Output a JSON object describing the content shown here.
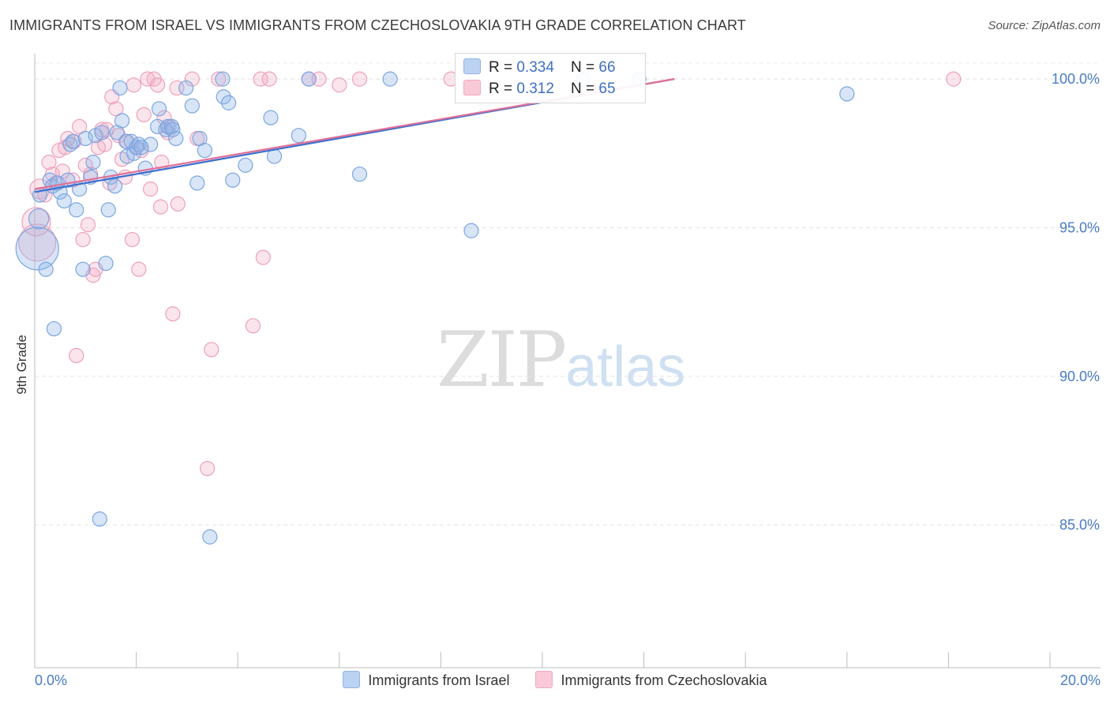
{
  "title": "IMMIGRANTS FROM ISRAEL VS IMMIGRANTS FROM CZECHOSLOVAKIA 9TH GRADE CORRELATION CHART",
  "source": "Source: ZipAtlas.com",
  "watermark": {
    "zip": "ZIP",
    "atlas": "atlas"
  },
  "colors": {
    "blue": "#8fb4e8",
    "blue_line": "#3a6fcc",
    "pink": "#f2a8c0",
    "pink_line": "#e07099",
    "tick_text": "#4a7cc7"
  },
  "legend_top": {
    "rows": [
      {
        "r_label": "R = ",
        "r_value": "0.334",
        "n_label": "N = ",
        "n_value": "66"
      },
      {
        "r_label": "R = ",
        "r_value": "0.312",
        "n_label": "N = ",
        "n_value": "65"
      }
    ]
  },
  "legend_bottom": [
    "Immigrants from Israel",
    "Immigrants from Czechoslovakia"
  ],
  "chart_data": {
    "type": "scatter",
    "title": "IMMIGRANTS FROM ISRAEL VS IMMIGRANTS FROM CZECHOSLOVAKIA 9TH GRADE CORRELATION CHART",
    "xlabel": "",
    "ylabel": "9th Grade",
    "xlim": [
      0,
      20
    ],
    "ylim": [
      80.2,
      100.8
    ],
    "x_tick_labels": [
      "0.0%",
      "20.0%"
    ],
    "y_ticks": [
      85,
      90,
      95,
      100
    ],
    "y_tick_labels": [
      "85.0%",
      "90.0%",
      "95.0%",
      "100.0%"
    ],
    "grid": true,
    "series": [
      {
        "name": "Immigrants from Israel",
        "R": 0.334,
        "N": 66,
        "trend": {
          "x": [
            0,
            12.6
          ],
          "y": [
            96.2,
            100.0
          ]
        },
        "points": [
          [
            0.05,
            94.3,
            3
          ],
          [
            0.08,
            95.3,
            1.4
          ],
          [
            0.1,
            96.1,
            1
          ],
          [
            0.22,
            93.6,
            1
          ],
          [
            0.3,
            96.6,
            1
          ],
          [
            0.35,
            96.4,
            1
          ],
          [
            0.38,
            91.6,
            1
          ],
          [
            0.45,
            96.5,
            1
          ],
          [
            0.5,
            96.2,
            1
          ],
          [
            0.58,
            95.9,
            1
          ],
          [
            0.65,
            96.6,
            1
          ],
          [
            0.7,
            97.8,
            1
          ],
          [
            0.75,
            97.9,
            1
          ],
          [
            0.82,
            95.6,
            1
          ],
          [
            0.88,
            96.3,
            1
          ],
          [
            0.95,
            93.6,
            1
          ],
          [
            1.0,
            98.0,
            1
          ],
          [
            1.1,
            96.7,
            1
          ],
          [
            1.15,
            97.2,
            1
          ],
          [
            1.2,
            98.1,
            1
          ],
          [
            1.28,
            85.2,
            1
          ],
          [
            1.32,
            98.2,
            1
          ],
          [
            1.4,
            93.8,
            1
          ],
          [
            1.45,
            95.6,
            1
          ],
          [
            1.5,
            96.7,
            1
          ],
          [
            1.58,
            96.4,
            1
          ],
          [
            1.62,
            98.2,
            1
          ],
          [
            1.68,
            99.7,
            1
          ],
          [
            1.72,
            98.6,
            1
          ],
          [
            1.8,
            97.9,
            1
          ],
          [
            1.82,
            97.4,
            1
          ],
          [
            1.9,
            97.9,
            1
          ],
          [
            1.95,
            97.5,
            1
          ],
          [
            2.0,
            97.7,
            1
          ],
          [
            2.05,
            97.8,
            1
          ],
          [
            2.1,
            97.7,
            1
          ],
          [
            2.18,
            97.0,
            1
          ],
          [
            2.28,
            97.8,
            1
          ],
          [
            2.42,
            98.4,
            1
          ],
          [
            2.45,
            99.0,
            1
          ],
          [
            2.58,
            98.3,
            1
          ],
          [
            2.62,
            98.4,
            1
          ],
          [
            2.7,
            98.4,
            1
          ],
          [
            2.72,
            98.3,
            1
          ],
          [
            2.78,
            98.0,
            1
          ],
          [
            2.98,
            99.7,
            1
          ],
          [
            3.1,
            99.1,
            1
          ],
          [
            3.2,
            96.5,
            1
          ],
          [
            3.25,
            98.0,
            1
          ],
          [
            3.35,
            97.6,
            1
          ],
          [
            3.45,
            84.6,
            1
          ],
          [
            3.7,
            100.0,
            1
          ],
          [
            3.72,
            99.4,
            1
          ],
          [
            3.82,
            99.2,
            1
          ],
          [
            3.9,
            96.6,
            1
          ],
          [
            4.15,
            97.1,
            1
          ],
          [
            4.65,
            98.7,
            1
          ],
          [
            4.72,
            97.4,
            1
          ],
          [
            5.2,
            98.1,
            1
          ],
          [
            5.4,
            100.0,
            1
          ],
          [
            6.4,
            96.8,
            1
          ],
          [
            7.0,
            100.0,
            1
          ],
          [
            8.6,
            94.9,
            1
          ],
          [
            10.8,
            100.0,
            1
          ],
          [
            11.9,
            100.0,
            1
          ],
          [
            16.0,
            99.5,
            1
          ]
        ]
      },
      {
        "name": "Immigrants from Czechoslovakia",
        "R": 0.312,
        "N": 65,
        "trend": {
          "x": [
            0,
            12.6
          ],
          "y": [
            96.3,
            100.0
          ]
        },
        "points": [
          [
            0.03,
            95.2,
            2
          ],
          [
            0.05,
            94.5,
            2.6
          ],
          [
            0.1,
            96.3,
            1.4
          ],
          [
            0.2,
            96.1,
            1
          ],
          [
            0.28,
            97.2,
            1
          ],
          [
            0.35,
            96.8,
            1
          ],
          [
            0.42,
            96.5,
            1
          ],
          [
            0.48,
            97.6,
            1
          ],
          [
            0.55,
            96.9,
            1
          ],
          [
            0.6,
            97.7,
            1
          ],
          [
            0.65,
            98.0,
            1
          ],
          [
            0.75,
            96.6,
            1
          ],
          [
            0.78,
            97.9,
            1
          ],
          [
            0.82,
            90.7,
            1
          ],
          [
            0.88,
            98.4,
            1
          ],
          [
            0.95,
            94.6,
            1
          ],
          [
            1.0,
            97.1,
            1
          ],
          [
            1.05,
            95.1,
            1
          ],
          [
            1.1,
            96.8,
            1
          ],
          [
            1.15,
            93.4,
            1
          ],
          [
            1.2,
            93.6,
            1
          ],
          [
            1.25,
            97.7,
            1
          ],
          [
            1.32,
            98.3,
            1
          ],
          [
            1.38,
            97.8,
            1
          ],
          [
            1.42,
            98.3,
            1
          ],
          [
            1.48,
            96.5,
            1
          ],
          [
            1.52,
            99.4,
            1
          ],
          [
            1.6,
            99.0,
            1
          ],
          [
            1.65,
            98.1,
            1
          ],
          [
            1.72,
            97.3,
            1
          ],
          [
            1.78,
            96.7,
            1
          ],
          [
            1.82,
            97.9,
            1
          ],
          [
            1.92,
            94.6,
            1
          ],
          [
            1.95,
            99.8,
            1
          ],
          [
            2.0,
            97.7,
            1
          ],
          [
            2.05,
            93.6,
            1
          ],
          [
            2.1,
            97.6,
            1
          ],
          [
            2.15,
            98.8,
            1
          ],
          [
            2.22,
            100.0,
            1
          ],
          [
            2.28,
            96.3,
            1
          ],
          [
            2.35,
            100.0,
            1
          ],
          [
            2.42,
            99.8,
            1
          ],
          [
            2.48,
            95.7,
            1
          ],
          [
            2.5,
            97.2,
            1
          ],
          [
            2.55,
            98.7,
            1
          ],
          [
            2.62,
            98.2,
            1
          ],
          [
            2.65,
            98.4,
            1
          ],
          [
            2.72,
            92.1,
            1
          ],
          [
            2.8,
            99.7,
            1
          ],
          [
            2.82,
            95.8,
            1
          ],
          [
            3.1,
            100.0,
            1
          ],
          [
            3.2,
            98.0,
            1
          ],
          [
            3.4,
            86.9,
            1
          ],
          [
            3.48,
            90.9,
            1
          ],
          [
            3.62,
            100.0,
            1
          ],
          [
            4.3,
            91.7,
            1
          ],
          [
            4.45,
            100.0,
            1
          ],
          [
            4.5,
            94.0,
            1
          ],
          [
            4.62,
            100.0,
            1
          ],
          [
            5.4,
            100.0,
            1
          ],
          [
            5.6,
            100.0,
            1
          ],
          [
            6.0,
            99.8,
            1
          ],
          [
            6.4,
            100.0,
            1
          ],
          [
            8.2,
            100.0,
            1
          ],
          [
            18.1,
            100.0,
            1
          ]
        ]
      }
    ]
  }
}
